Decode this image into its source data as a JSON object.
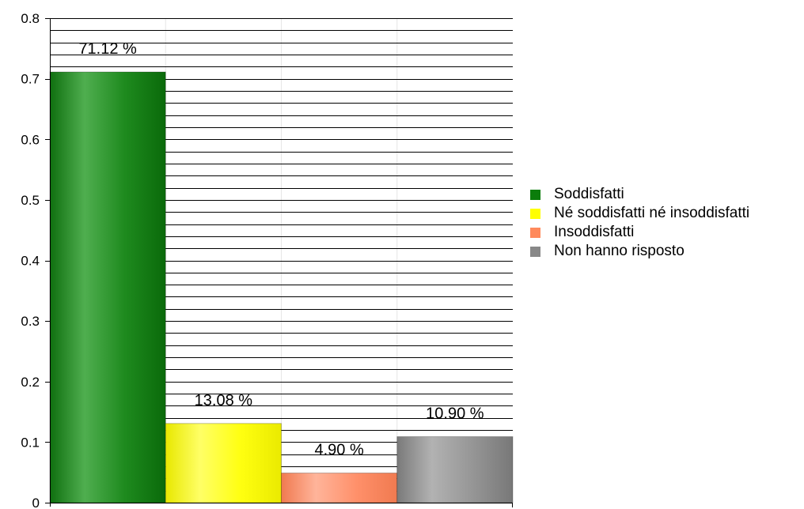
{
  "chart_data": {
    "type": "bar",
    "categories": [
      "Soddisfatti",
      "Né soddisfatti né insoddisfatti",
      "Insoddisfatti",
      "Non hanno risposto"
    ],
    "values": [
      0.7112,
      0.1308,
      0.049,
      0.109
    ],
    "data_labels": [
      "71.12 %",
      "13.08 %",
      "4.90 %",
      "10.90 %"
    ],
    "colors": [
      "#1a8a1a",
      "#ffff00",
      "#ff8a5c",
      "#8c8c8c"
    ],
    "ylim": [
      0,
      0.8
    ],
    "yticks": [
      0,
      0.1,
      0.2,
      0.3,
      0.4,
      0.5,
      0.6,
      0.7,
      0.8
    ],
    "ytick_labels": [
      "0",
      "0.1",
      "0.2",
      "0.3",
      "0.4",
      "0.5",
      "0.6",
      "0.7",
      "0.8"
    ],
    "grid": true,
    "minor_grid_step": 0.02,
    "legend_position": "right"
  }
}
